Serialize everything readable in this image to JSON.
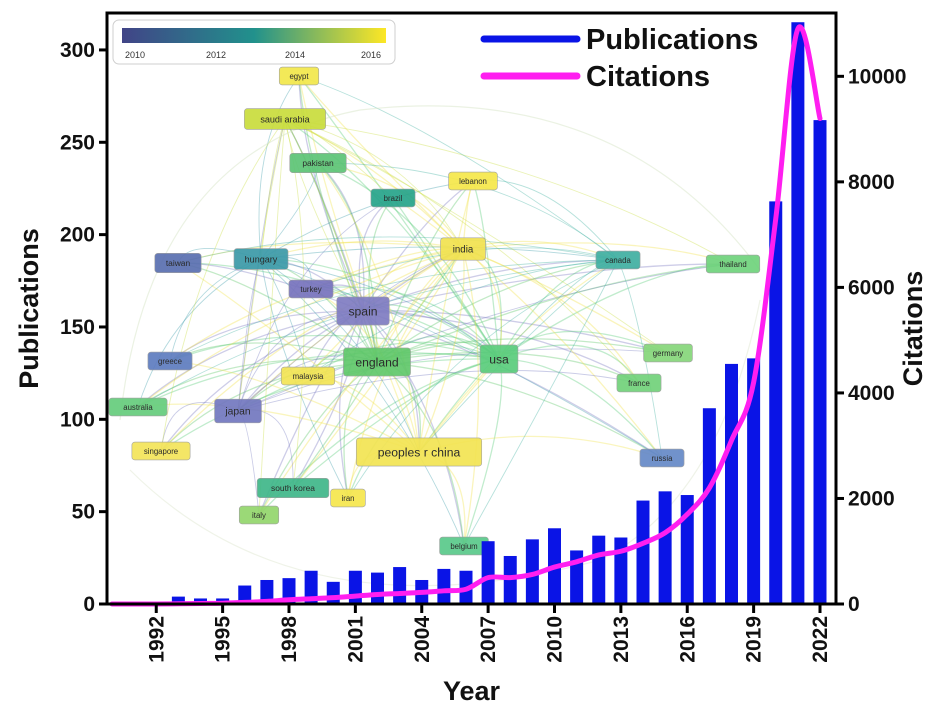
{
  "chart_data": {
    "type": "bar",
    "xlabel": "Year",
    "ylabel": "Publications",
    "y2label": "Citations",
    "ylim": [
      0,
      320
    ],
    "y2lim": [
      0,
      11200
    ],
    "yticks": [
      0,
      50,
      100,
      150,
      200,
      250,
      300
    ],
    "y2ticks": [
      0,
      2000,
      4000,
      6000,
      8000,
      10000
    ],
    "xtick_labels": [
      "1992",
      "1995",
      "1998",
      "2001",
      "2004",
      "2007",
      "2010",
      "2013",
      "2016",
      "2019",
      "2022"
    ],
    "grid": false,
    "legend_position": "top-right",
    "years": [
      1990,
      1991,
      1992,
      1993,
      1994,
      1995,
      1996,
      1997,
      1998,
      1999,
      2000,
      2001,
      2002,
      2003,
      2004,
      2005,
      2006,
      2007,
      2008,
      2009,
      2010,
      2011,
      2012,
      2013,
      2014,
      2015,
      2016,
      2017,
      2018,
      2019,
      2020,
      2021,
      2022
    ],
    "series": [
      {
        "name": "Publications",
        "kind": "bar",
        "axis": "left",
        "color": "#0a14e6",
        "values": [
          0,
          0,
          0,
          4,
          3,
          3,
          10,
          13,
          14,
          18,
          12,
          18,
          17,
          20,
          13,
          19,
          18,
          34,
          26,
          35,
          41,
          29,
          37,
          36,
          56,
          61,
          59,
          106,
          130,
          133,
          218,
          315,
          262
        ]
      },
      {
        "name": "Citations",
        "kind": "line",
        "axis": "right",
        "color": "#ff1ef0",
        "values": [
          0,
          0,
          0,
          5,
          10,
          15,
          30,
          50,
          80,
          100,
          120,
          150,
          180,
          200,
          220,
          250,
          280,
          500,
          500,
          560,
          700,
          800,
          930,
          1000,
          1150,
          1350,
          1700,
          2200,
          3100,
          4200,
          7300,
          10900,
          9200
        ]
      }
    ],
    "inset_network": {
      "colorbar_min_color": "#414487",
      "colorbar_mid_color": "#21918c",
      "colorbar_max_color": "#fde725",
      "colorbar_ticks": [
        "2010",
        "2012",
        "2014",
        "2016"
      ],
      "nodes": [
        {
          "label": "egypt",
          "color": "#f3e84a"
        },
        {
          "label": "saudi arabia",
          "color": "#c9dd3c"
        },
        {
          "label": "pakistan",
          "color": "#5dc476"
        },
        {
          "label": "brazil",
          "color": "#27a48a"
        },
        {
          "label": "lebanon",
          "color": "#f6e84a"
        },
        {
          "label": "india",
          "color": "#f1e250"
        },
        {
          "label": "taiwan",
          "color": "#5a6fb0"
        },
        {
          "label": "hungary",
          "color": "#3b9aa8"
        },
        {
          "label": "turkey",
          "color": "#7773bd"
        },
        {
          "label": "spain",
          "color": "#7f7cc2"
        },
        {
          "label": "canada",
          "color": "#3fafa1"
        },
        {
          "label": "thailand",
          "color": "#6fd37c"
        },
        {
          "label": "greece",
          "color": "#5e7cc0"
        },
        {
          "label": "england",
          "color": "#61c86b"
        },
        {
          "label": "usa",
          "color": "#5bcd7c"
        },
        {
          "label": "germany",
          "color": "#86d67a"
        },
        {
          "label": "malaysia",
          "color": "#f2e454"
        },
        {
          "label": "france",
          "color": "#71d27a"
        },
        {
          "label": "australia",
          "color": "#66cd7c"
        },
        {
          "label": "japan",
          "color": "#7378bf"
        },
        {
          "label": "peoples r china",
          "color": "#f3e453"
        },
        {
          "label": "singapore",
          "color": "#f4e45a"
        },
        {
          "label": "russia",
          "color": "#6689c7"
        },
        {
          "label": "south korea",
          "color": "#3fb789"
        },
        {
          "label": "iran",
          "color": "#f6e74d"
        },
        {
          "label": "italy",
          "color": "#93d66c"
        },
        {
          "label": "belgium",
          "color": "#5ac98a"
        }
      ]
    }
  }
}
